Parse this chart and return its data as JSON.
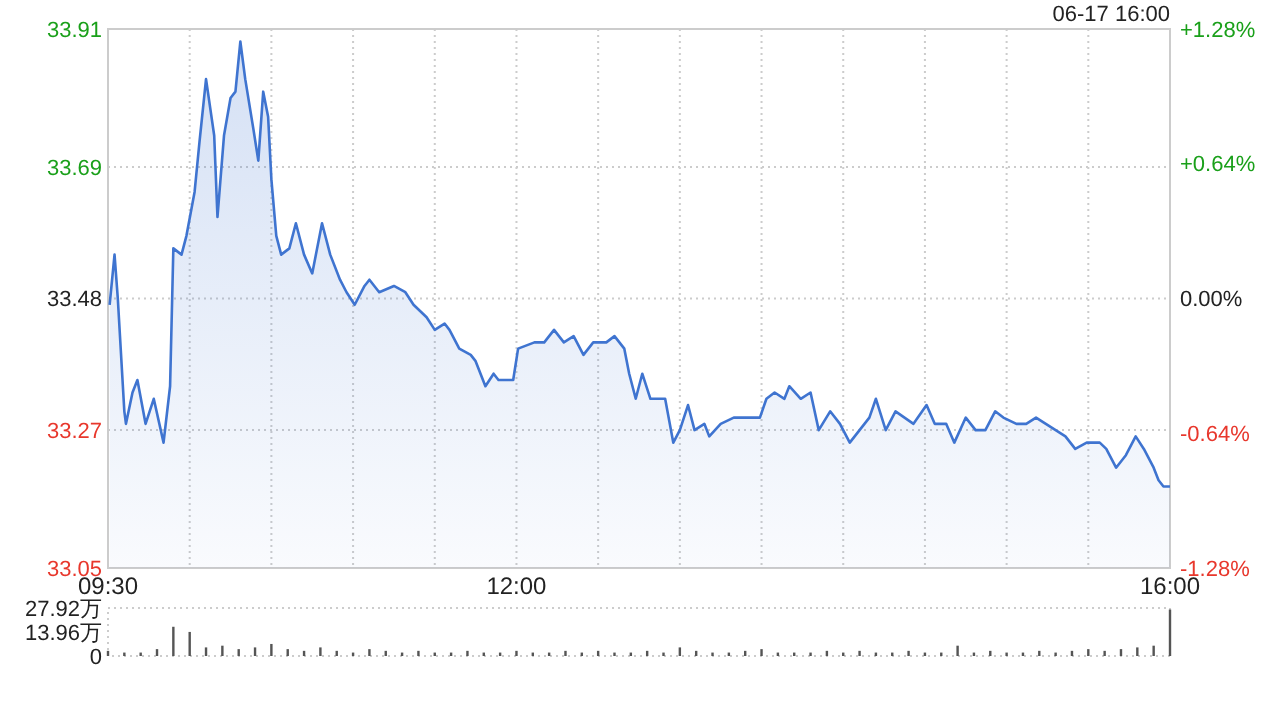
{
  "chart_data": [
    {
      "type": "area",
      "annotations": [
        "06-17 16:00"
      ],
      "x": [
        9.51,
        9.54,
        9.56,
        9.6,
        9.61,
        9.65,
        9.68,
        9.73,
        9.78,
        9.84,
        9.88,
        9.9,
        9.95,
        9.98,
        10.03,
        10.06,
        10.1,
        10.15,
        10.17,
        10.21,
        10.25,
        10.28,
        10.31,
        10.34,
        10.39,
        10.42,
        10.45,
        10.48,
        10.5,
        10.53,
        10.56,
        10.61,
        10.65,
        10.7,
        10.75,
        10.81,
        10.86,
        10.92,
        10.96,
        11.01,
        11.07,
        11.1,
        11.16,
        11.25,
        11.32,
        11.37,
        11.45,
        11.5,
        11.56,
        11.59,
        11.65,
        11.72,
        11.75,
        11.81,
        11.86,
        11.89,
        11.98,
        12.01,
        12.11,
        12.17,
        12.23,
        12.29,
        12.35,
        12.41,
        12.47,
        12.55,
        12.6,
        12.66,
        12.69,
        12.73,
        12.77,
        12.82,
        12.88,
        12.91,
        12.96,
        13.0,
        13.05,
        13.09,
        13.15,
        13.18,
        13.25,
        13.33,
        13.4,
        13.49,
        13.53,
        13.58,
        13.64,
        13.67,
        13.74,
        13.8,
        13.85,
        13.92,
        13.98,
        14.04,
        14.1,
        14.16,
        14.2,
        14.26,
        14.32,
        14.43,
        14.51,
        14.56,
        14.63,
        14.68,
        14.75,
        14.81,
        14.87,
        14.93,
        14.98,
        15.06,
        15.12,
        15.18,
        15.24,
        15.3,
        15.36,
        15.42,
        15.49,
        15.57,
        15.61,
        15.67,
        15.73,
        15.79,
        15.84,
        15.9,
        15.93,
        15.96,
        16.0
      ],
      "series": [
        {
          "color": "#3f74d0",
          "values": [
            33.47,
            33.55,
            33.48,
            33.3,
            33.28,
            33.33,
            33.35,
            33.28,
            33.32,
            33.25,
            33.34,
            33.56,
            33.55,
            33.58,
            33.65,
            33.73,
            33.83,
            33.74,
            33.61,
            33.74,
            33.8,
            33.81,
            33.89,
            33.83,
            33.75,
            33.7,
            33.81,
            33.77,
            33.67,
            33.58,
            33.55,
            33.56,
            33.6,
            33.55,
            33.52,
            33.6,
            33.55,
            33.51,
            33.49,
            33.47,
            33.5,
            33.51,
            33.49,
            33.5,
            33.49,
            33.47,
            33.45,
            33.43,
            33.44,
            33.43,
            33.4,
            33.39,
            33.38,
            33.34,
            33.36,
            33.35,
            33.35,
            33.4,
            33.41,
            33.41,
            33.43,
            33.41,
            33.42,
            33.39,
            33.41,
            33.41,
            33.42,
            33.4,
            33.36,
            33.32,
            33.36,
            33.32,
            33.32,
            33.32,
            33.25,
            33.27,
            33.31,
            33.27,
            33.28,
            33.26,
            33.28,
            33.29,
            33.29,
            33.29,
            33.32,
            33.33,
            33.32,
            33.34,
            33.32,
            33.33,
            33.27,
            33.3,
            33.28,
            33.25,
            33.27,
            33.29,
            33.32,
            33.27,
            33.3,
            33.28,
            33.31,
            33.28,
            33.28,
            33.25,
            33.29,
            33.27,
            33.27,
            33.3,
            33.29,
            33.28,
            33.28,
            33.29,
            33.28,
            33.27,
            33.26,
            33.24,
            33.25,
            33.25,
            33.24,
            33.21,
            33.23,
            33.26,
            33.24,
            33.21,
            33.19,
            33.18,
            33.18
          ]
        }
      ],
      "xlim": [
        9.5,
        16.0
      ],
      "xticks": [
        {
          "value": 9.5,
          "label": "09:30"
        },
        {
          "value": 10,
          "label": null
        },
        {
          "value": 10.5,
          "label": null
        },
        {
          "value": 11,
          "label": null
        },
        {
          "value": 11.5,
          "label": null
        },
        {
          "value": 12,
          "label": "12:00"
        },
        {
          "value": 12.5,
          "label": null
        },
        {
          "value": 13,
          "label": null
        },
        {
          "value": 13.5,
          "label": null
        },
        {
          "value": 14,
          "label": null
        },
        {
          "value": 14.5,
          "label": null
        },
        {
          "value": 15,
          "label": null
        },
        {
          "value": 15.5,
          "label": null
        },
        {
          "value": 16,
          "label": "16:00"
        }
      ],
      "ylim": [
        33.05,
        33.91
      ],
      "yticks": [
        33.05,
        33.27,
        33.48,
        33.69,
        33.91
      ],
      "y2lim": [
        -1.28,
        1.28
      ],
      "y2ticks": [
        {
          "value": -1.28,
          "label": "-1.28%"
        },
        {
          "value": -0.64,
          "label": "-0.64%"
        },
        {
          "value": 0,
          "label": "0.00%"
        },
        {
          "value": 0.64,
          "label": "+0.64%"
        },
        {
          "value": 1.28,
          "label": "+1.28%"
        }
      ],
      "grid": true
    },
    {
      "type": "bar",
      "tick_labels": "y",
      "x": [
        9.5,
        9.6,
        9.7,
        9.8,
        9.9,
        10.0,
        10.1,
        10.2,
        10.3,
        10.4,
        10.5,
        10.6,
        10.7,
        10.8,
        10.9,
        11.0,
        11.1,
        11.2,
        11.3,
        11.4,
        11.5,
        11.6,
        11.7,
        11.8,
        11.9,
        12.0,
        12.1,
        12.2,
        12.3,
        12.4,
        12.5,
        12.6,
        12.7,
        12.8,
        12.9,
        13.0,
        13.1,
        13.2,
        13.3,
        13.4,
        13.5,
        13.6,
        13.7,
        13.8,
        13.9,
        14.0,
        14.1,
        14.2,
        14.3,
        14.4,
        14.5,
        14.6,
        14.7,
        14.8,
        14.9,
        15.0,
        15.1,
        15.2,
        15.3,
        15.4,
        15.5,
        15.6,
        15.7,
        15.8,
        15.9,
        16.0
      ],
      "series": [
        {
          "color": "#555555",
          "values": [
            3,
            2,
            2,
            4,
            17,
            14,
            5,
            6,
            4,
            5,
            7,
            4,
            3,
            5,
            3,
            2,
            4,
            3,
            2,
            3,
            2,
            2,
            3,
            2,
            2,
            3,
            2,
            2,
            3,
            2,
            3,
            2,
            2,
            3,
            2,
            5,
            3,
            2,
            2,
            3,
            4,
            2,
            2,
            2,
            3,
            2,
            3,
            2,
            2,
            3,
            2,
            2,
            6,
            2,
            3,
            2,
            2,
            3,
            2,
            3,
            4,
            3,
            4,
            5,
            6,
            27
          ]
        }
      ],
      "xlim": [
        9.5,
        16.0
      ],
      "ylim": [
        0,
        27.92
      ],
      "yticks": [
        0,
        {
          "value": 13.96,
          "label": "13.96万"
        },
        {
          "value": 27.92,
          "label": "27.92万"
        }
      ]
    }
  ]
}
